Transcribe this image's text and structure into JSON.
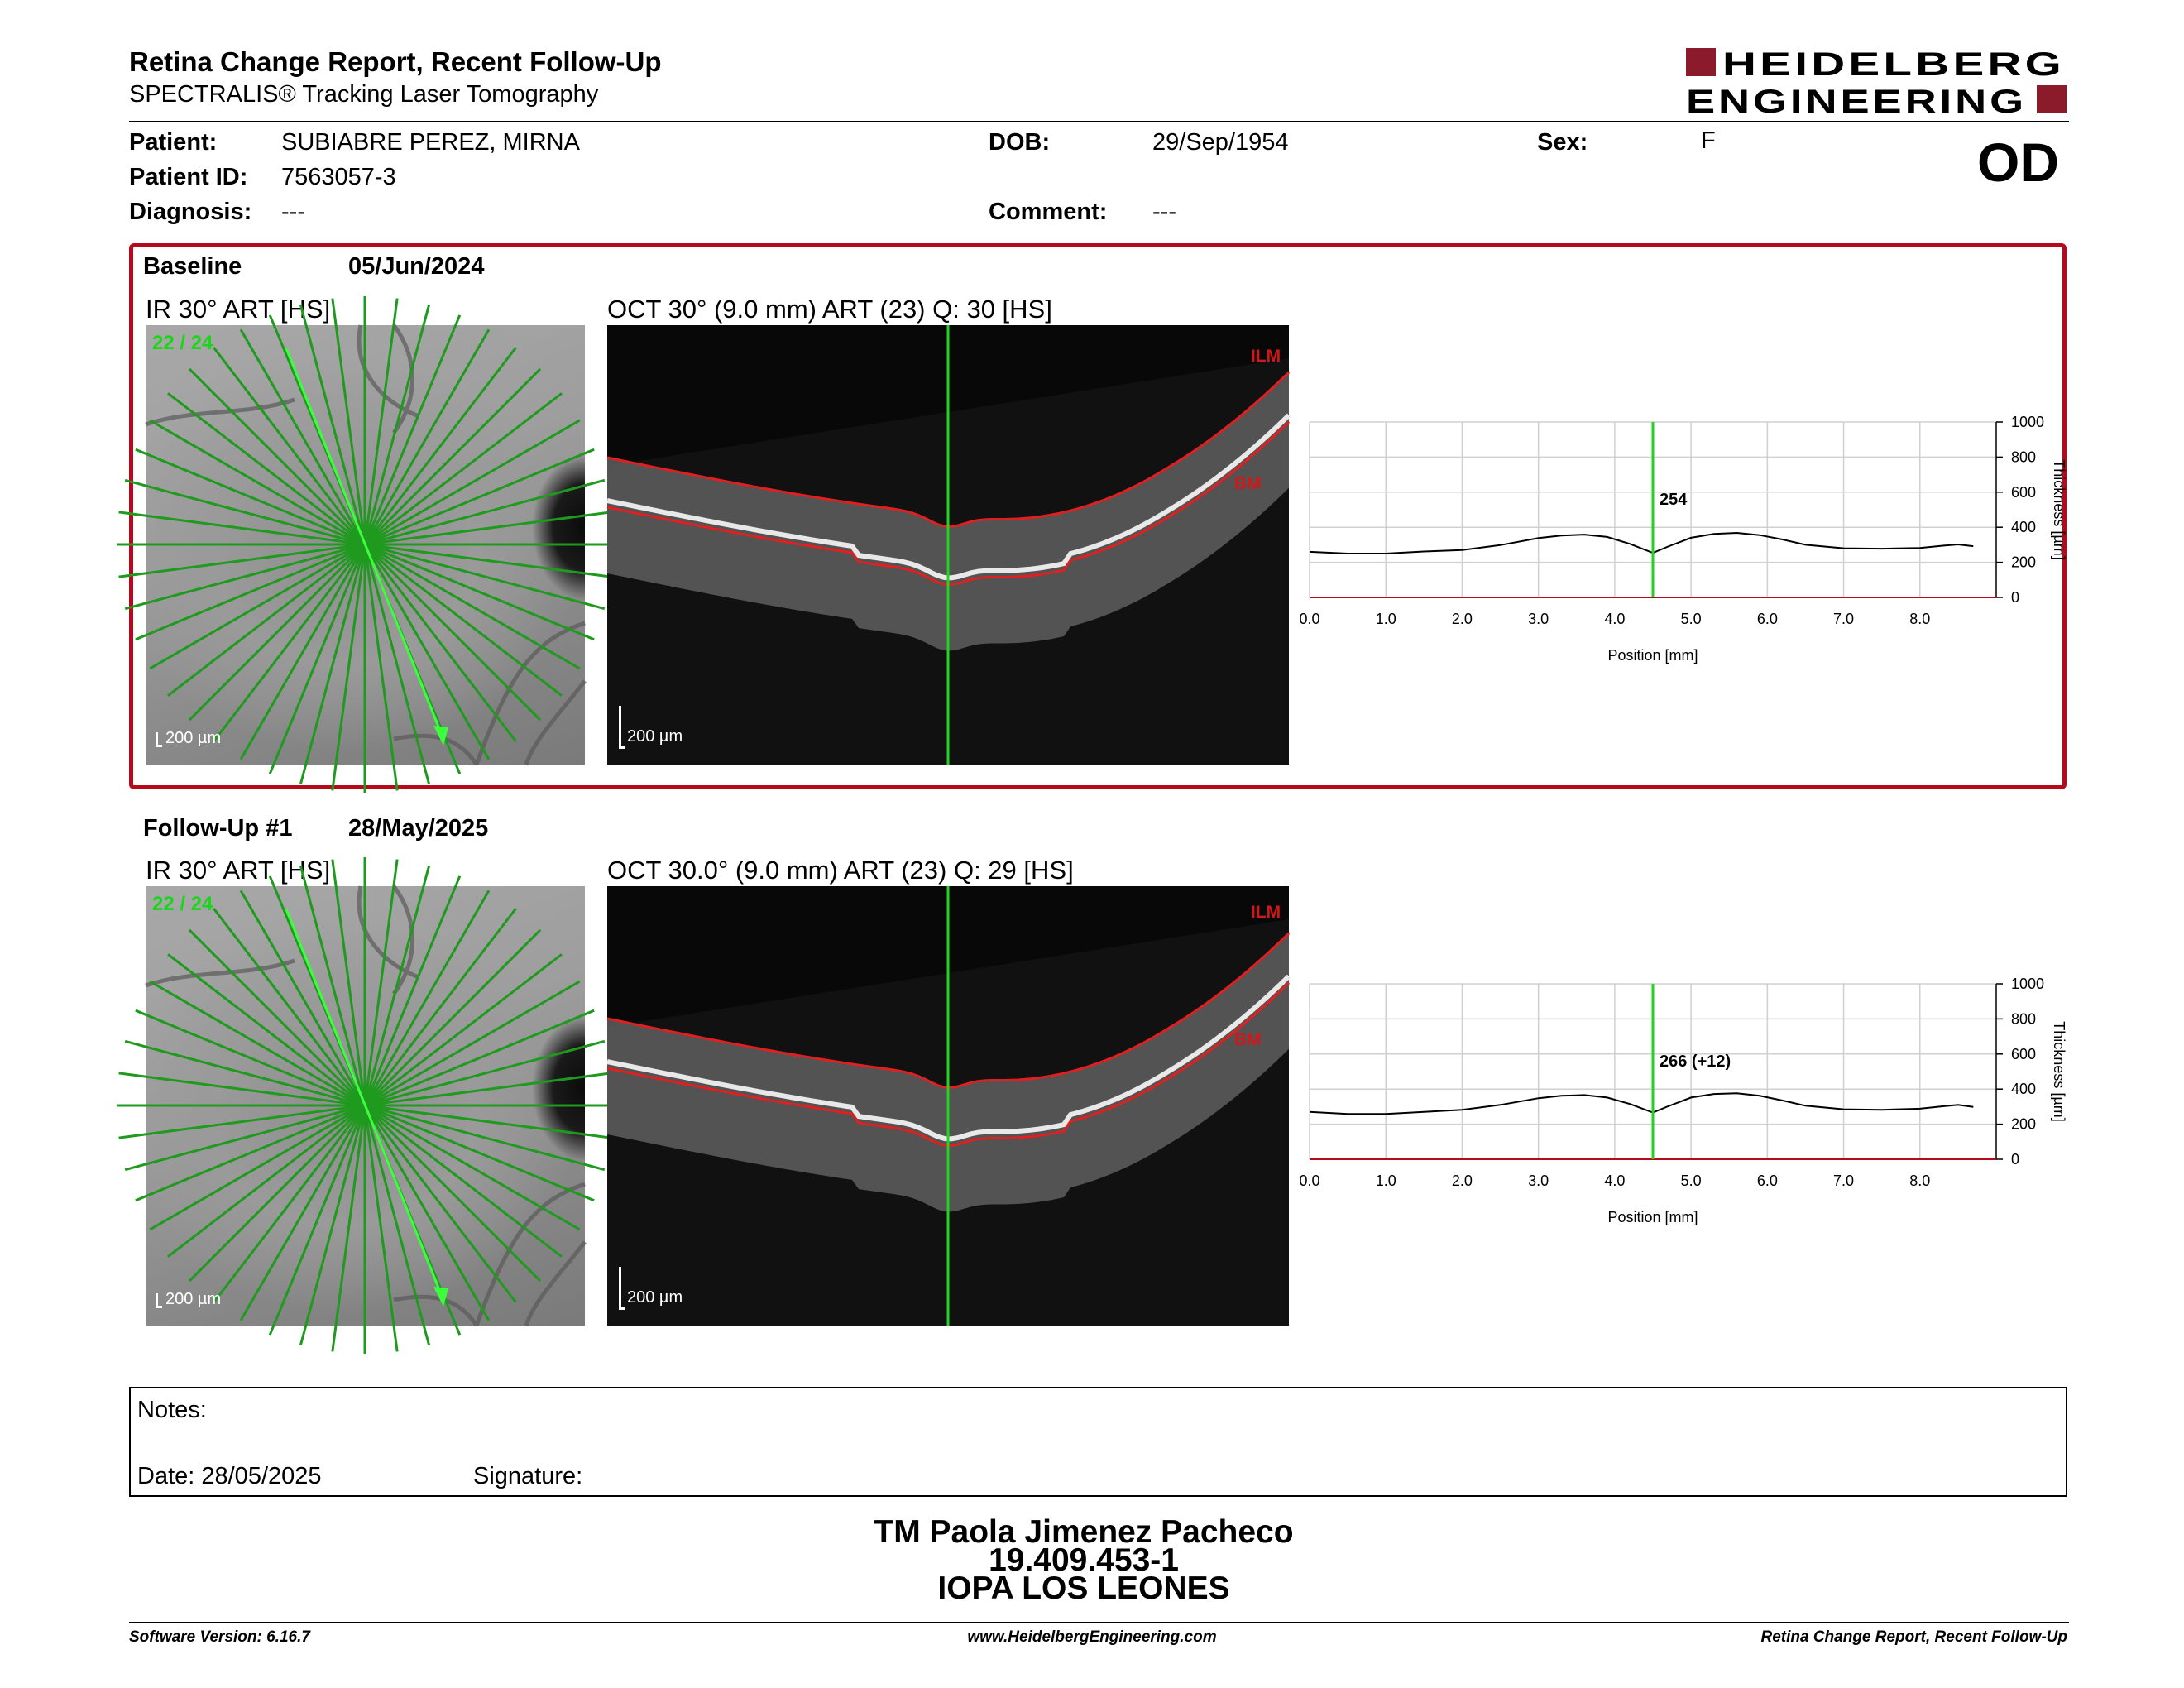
{
  "header": {
    "title": "Retina Change Report, Recent Follow-Up",
    "subtitle": "SPECTRALIS® Tracking Laser Tomography",
    "logo_line1": "HEIDELBERG",
    "logo_line2": "ENGINEERING",
    "brand_color": "#8b1a2b"
  },
  "patient": {
    "patient_label": "Patient:",
    "patient_name": "SUBIABRE PEREZ, MIRNA",
    "id_label": "Patient ID:",
    "id_value": "7563057-3",
    "diagnosis_label": "Diagnosis:",
    "diagnosis_value": "---",
    "dob_label": "DOB:",
    "dob_value": "29/Sep/1954",
    "comment_label": "Comment:",
    "comment_value": "---",
    "sex_label": "Sex:",
    "sex_value": "F",
    "eye": "OD"
  },
  "baseline": {
    "label": "Baseline",
    "date": "05/Jun/2024",
    "ir_title": "IR 30° ART [HS]",
    "ir_count": "22 / 24",
    "ir_scale": "200 µm",
    "oct_title": "OCT 30° (9.0 mm) ART (23) Q: 30 [HS]",
    "oct_scale": "200 µm",
    "ilm_label": "ILM",
    "bm_label": "BM",
    "highlight_color": "#b50a1e"
  },
  "followup": {
    "label": "Follow-Up #1",
    "date": "28/May/2025",
    "ir_title": "IR 30° ART [HS]",
    "ir_count": "22 / 24",
    "ir_scale": "200 µm",
    "oct_title": "OCT 30.0° (9.0 mm) ART (23) Q: 29 [HS]",
    "oct_scale": "200 µm",
    "ilm_label": "ILM",
    "bm_label": "BM"
  },
  "chart_data": [
    {
      "type": "line",
      "xlabel": "Position [mm]",
      "ylabel": "Thickness [µm]",
      "xlim": [
        0,
        9
      ],
      "ylim": [
        0,
        1000
      ],
      "xticks": [
        "0.0",
        "1.0",
        "2.0",
        "3.0",
        "4.0",
        "5.0",
        "6.0",
        "7.0",
        "8.0"
      ],
      "yticks": [
        "0",
        "200",
        "400",
        "600",
        "800",
        "1000"
      ],
      "grid": true,
      "marker_x": 4.5,
      "marker_label": "254",
      "series": [
        {
          "x": [
            0,
            0.5,
            1.0,
            1.5,
            2.0,
            2.5,
            3.0,
            3.3,
            3.6,
            3.9,
            4.2,
            4.5,
            4.7,
            5.0,
            5.3,
            5.6,
            5.9,
            6.2,
            6.5,
            7.0,
            7.5,
            8.0,
            8.3,
            8.5,
            8.7
          ],
          "y": [
            260,
            250,
            250,
            262,
            270,
            298,
            338,
            353,
            358,
            345,
            305,
            254,
            290,
            340,
            362,
            368,
            355,
            330,
            300,
            280,
            278,
            282,
            295,
            302,
            292
          ]
        }
      ]
    },
    {
      "type": "line",
      "xlabel": "Position [mm]",
      "ylabel": "Thickness [µm]",
      "xlim": [
        0,
        9
      ],
      "ylim": [
        0,
        1000
      ],
      "xticks": [
        "0.0",
        "1.0",
        "2.0",
        "3.0",
        "4.0",
        "5.0",
        "6.0",
        "7.0",
        "8.0"
      ],
      "yticks": [
        "0",
        "200",
        "400",
        "600",
        "800",
        "1000"
      ],
      "grid": true,
      "marker_x": 4.5,
      "marker_label": "266 (+12)",
      "series": [
        {
          "x": [
            0,
            0.5,
            1.0,
            1.5,
            2.0,
            2.5,
            3.0,
            3.3,
            3.6,
            3.9,
            4.2,
            4.5,
            4.7,
            5.0,
            5.3,
            5.6,
            5.9,
            6.2,
            6.5,
            7.0,
            7.5,
            8.0,
            8.3,
            8.5,
            8.7
          ],
          "y": [
            270,
            258,
            258,
            270,
            282,
            310,
            348,
            362,
            366,
            352,
            315,
            266,
            302,
            352,
            372,
            376,
            362,
            335,
            305,
            285,
            282,
            288,
            302,
            310,
            298
          ]
        }
      ]
    }
  ],
  "notes": {
    "notes_label": "Notes:",
    "date_label": "Date: 28/05/2025",
    "signature_label": "Signature:"
  },
  "signoff": {
    "name": "TM Paola Jimenez Pacheco",
    "rut": "19.409.453-1",
    "institution": "IOPA LOS LEONES"
  },
  "footer": {
    "version": "Software Version: 6.16.7",
    "website": "www.HeidelbergEngineering.com",
    "report": "Retina Change Report, Recent Follow-Up"
  }
}
